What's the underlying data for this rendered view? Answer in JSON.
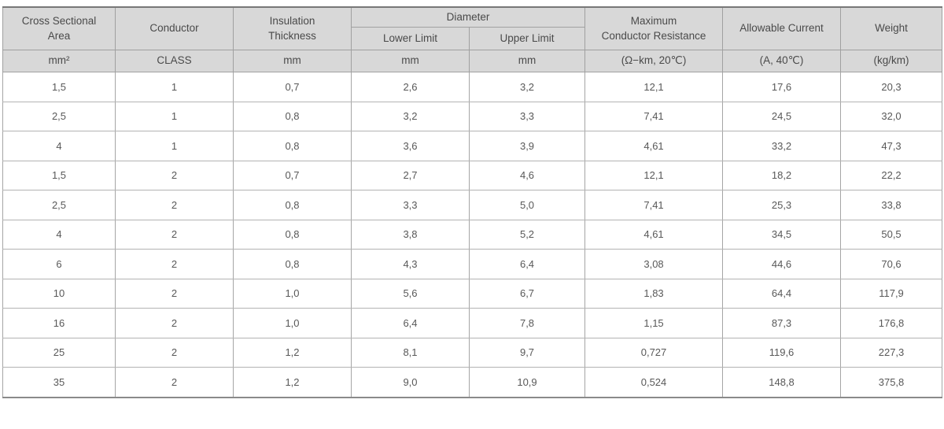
{
  "meta": {
    "header_bg": "#d8d8d8",
    "body_bg": "#ffffff",
    "border_color": "#a0a0a0",
    "text_color": "#4c4c4c"
  },
  "table": {
    "headers": {
      "cross_sectional_area": "Cross Sectional\nArea",
      "conductor": "Conductor",
      "insulation_thickness": "Insulation\nThickness",
      "diameter": "Diameter",
      "lower_limit": "Lower Limit",
      "upper_limit": "Upper Limit",
      "max_conductor_resistance": "Maximum\nConductor Resistance",
      "allowable_current": "Allowable Current",
      "weight": "Weight"
    },
    "units": [
      "mm²",
      "CLASS",
      "mm",
      "mm",
      "mm",
      "(Ω−km, 20℃)",
      "(A, 40℃)",
      "(kg/km)"
    ],
    "rows": [
      [
        "1,5",
        "1",
        "0,7",
        "2,6",
        "3,2",
        "12,1",
        "17,6",
        "20,3"
      ],
      [
        "2,5",
        "1",
        "0,8",
        "3,2",
        "3,3",
        "7,41",
        "24,5",
        "32,0"
      ],
      [
        "4",
        "1",
        "0,8",
        "3,6",
        "3,9",
        "4,61",
        "33,2",
        "47,3"
      ],
      [
        "1,5",
        "2",
        "0,7",
        "2,7",
        "4,6",
        "12,1",
        "18,2",
        "22,2"
      ],
      [
        "2,5",
        "2",
        "0,8",
        "3,3",
        "5,0",
        "7,41",
        "25,3",
        "33,8"
      ],
      [
        "4",
        "2",
        "0,8",
        "3,8",
        "5,2",
        "4,61",
        "34,5",
        "50,5"
      ],
      [
        "6",
        "2",
        "0,8",
        "4,3",
        "6,4",
        "3,08",
        "44,6",
        "70,6"
      ],
      [
        "10",
        "2",
        "1,0",
        "5,6",
        "6,7",
        "1,83",
        "64,4",
        "117,9"
      ],
      [
        "16",
        "2",
        "1,0",
        "6,4",
        "7,8",
        "1,15",
        "87,3",
        "176,8"
      ],
      [
        "25",
        "2",
        "1,2",
        "8,1",
        "9,7",
        "0,727",
        "119,6",
        "227,3"
      ],
      [
        "35",
        "2",
        "1,2",
        "9,0",
        "10,9",
        "0,524",
        "148,8",
        "375,8"
      ]
    ]
  }
}
